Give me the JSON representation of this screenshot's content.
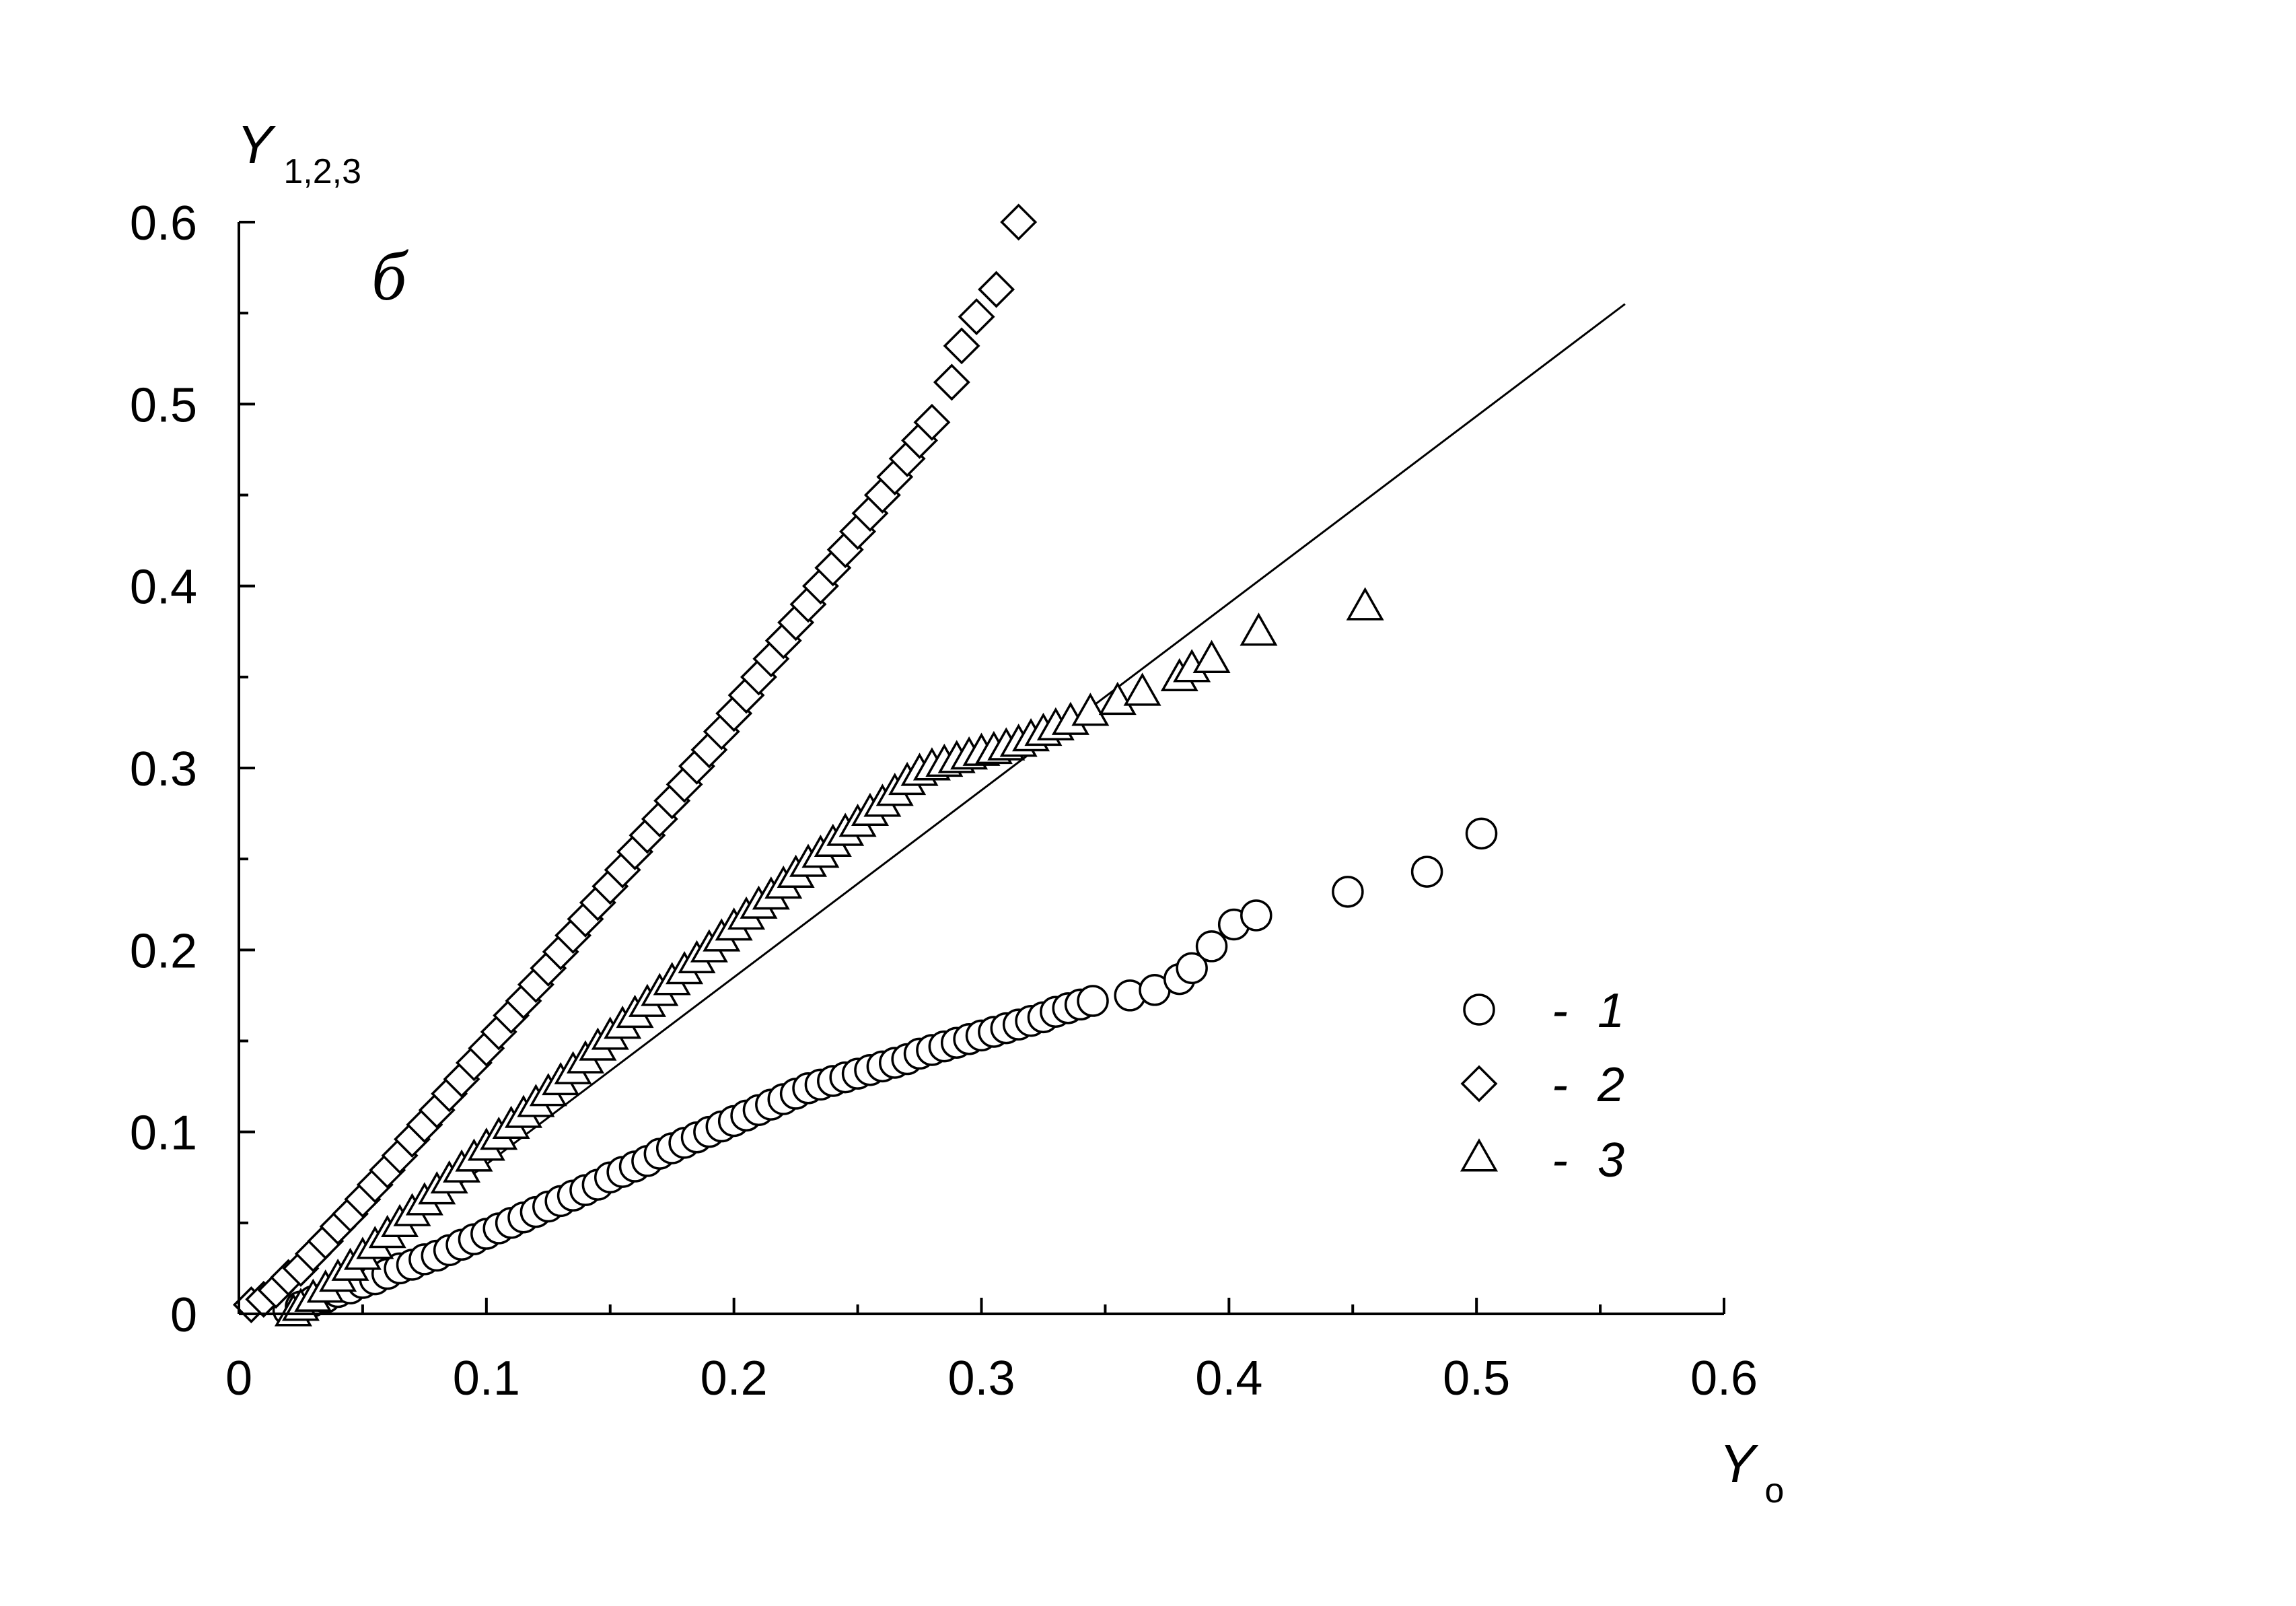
{
  "chart_data": {
    "type": "scatter",
    "title": "",
    "panel_label": "б",
    "xlabel": {
      "main": "Y",
      "sub": "o"
    },
    "ylabel": {
      "main": "Y",
      "sub": "1,2,3"
    },
    "xlim": [
      0,
      0.6
    ],
    "ylim": [
      0,
      0.6
    ],
    "xticks": [
      "0",
      "0.1",
      "0.2",
      "0.3",
      "0.4",
      "0.5",
      "0.6"
    ],
    "yticks": [
      "0",
      "0.1",
      "0.2",
      "0.3",
      "0.4",
      "0.5",
      "0.6"
    ],
    "grid": false,
    "legend_position": "right-middle",
    "legend": [
      {
        "marker": "circle",
        "dash": "-",
        "label": "1"
      },
      {
        "marker": "diamond",
        "dash": "-",
        "label": "2"
      },
      {
        "marker": "triangle",
        "dash": "-",
        "label": "3"
      }
    ],
    "reference_line": {
      "x": [
        0.02,
        0.56
      ],
      "y": [
        0.0,
        0.555
      ]
    },
    "series": [
      {
        "label": "1",
        "marker": "circle",
        "points": [
          [
            0.02,
            0.002
          ],
          [
            0.025,
            0.004
          ],
          [
            0.03,
            0.007
          ],
          [
            0.035,
            0.009
          ],
          [
            0.04,
            0.012
          ],
          [
            0.045,
            0.014
          ],
          [
            0.05,
            0.017
          ],
          [
            0.055,
            0.019
          ],
          [
            0.06,
            0.022
          ],
          [
            0.065,
            0.025
          ],
          [
            0.07,
            0.027
          ],
          [
            0.075,
            0.03
          ],
          [
            0.08,
            0.032
          ],
          [
            0.085,
            0.035
          ],
          [
            0.09,
            0.038
          ],
          [
            0.095,
            0.041
          ],
          [
            0.1,
            0.044
          ],
          [
            0.105,
            0.047
          ],
          [
            0.11,
            0.05
          ],
          [
            0.115,
            0.053
          ],
          [
            0.12,
            0.056
          ],
          [
            0.125,
            0.059
          ],
          [
            0.13,
            0.062
          ],
          [
            0.135,
            0.065
          ],
          [
            0.14,
            0.068
          ],
          [
            0.145,
            0.071
          ],
          [
            0.15,
            0.075
          ],
          [
            0.155,
            0.078
          ],
          [
            0.16,
            0.081
          ],
          [
            0.165,
            0.084
          ],
          [
            0.17,
            0.088
          ],
          [
            0.175,
            0.091
          ],
          [
            0.18,
            0.094
          ],
          [
            0.185,
            0.097
          ],
          [
            0.19,
            0.1
          ],
          [
            0.195,
            0.103
          ],
          [
            0.2,
            0.106
          ],
          [
            0.205,
            0.109
          ],
          [
            0.21,
            0.112
          ],
          [
            0.215,
            0.115
          ],
          [
            0.22,
            0.118
          ],
          [
            0.225,
            0.121
          ],
          [
            0.23,
            0.124
          ],
          [
            0.235,
            0.126
          ],
          [
            0.24,
            0.128
          ],
          [
            0.245,
            0.13
          ],
          [
            0.25,
            0.132
          ],
          [
            0.255,
            0.134
          ],
          [
            0.26,
            0.136
          ],
          [
            0.265,
            0.138
          ],
          [
            0.27,
            0.14
          ],
          [
            0.275,
            0.143
          ],
          [
            0.28,
            0.145
          ],
          [
            0.285,
            0.147
          ],
          [
            0.29,
            0.149
          ],
          [
            0.295,
            0.151
          ],
          [
            0.3,
            0.153
          ],
          [
            0.305,
            0.155
          ],
          [
            0.31,
            0.157
          ],
          [
            0.315,
            0.159
          ],
          [
            0.32,
            0.161
          ],
          [
            0.325,
            0.163
          ],
          [
            0.33,
            0.166
          ],
          [
            0.335,
            0.168
          ],
          [
            0.34,
            0.17
          ],
          [
            0.345,
            0.172
          ],
          [
            0.36,
            0.175
          ],
          [
            0.37,
            0.178
          ],
          [
            0.38,
            0.184
          ],
          [
            0.385,
            0.19
          ],
          [
            0.393,
            0.202
          ],
          [
            0.402,
            0.214
          ],
          [
            0.411,
            0.219
          ],
          [
            0.448,
            0.232
          ],
          [
            0.48,
            0.243
          ],
          [
            0.502,
            0.264
          ]
        ]
      },
      {
        "label": "2",
        "marker": "diamond",
        "points": [
          [
            0.005,
            0.005
          ],
          [
            0.01,
            0.008
          ],
          [
            0.015,
            0.013
          ],
          [
            0.02,
            0.02
          ],
          [
            0.025,
            0.025
          ],
          [
            0.03,
            0.033
          ],
          [
            0.035,
            0.04
          ],
          [
            0.04,
            0.048
          ],
          [
            0.045,
            0.055
          ],
          [
            0.05,
            0.063
          ],
          [
            0.055,
            0.071
          ],
          [
            0.06,
            0.079
          ],
          [
            0.065,
            0.087
          ],
          [
            0.07,
            0.096
          ],
          [
            0.075,
            0.104
          ],
          [
            0.08,
            0.112
          ],
          [
            0.085,
            0.121
          ],
          [
            0.09,
            0.129
          ],
          [
            0.095,
            0.138
          ],
          [
            0.1,
            0.146
          ],
          [
            0.105,
            0.155
          ],
          [
            0.11,
            0.164
          ],
          [
            0.115,
            0.172
          ],
          [
            0.12,
            0.181
          ],
          [
            0.125,
            0.19
          ],
          [
            0.13,
            0.199
          ],
          [
            0.135,
            0.208
          ],
          [
            0.14,
            0.217
          ],
          [
            0.145,
            0.226
          ],
          [
            0.15,
            0.235
          ],
          [
            0.155,
            0.244
          ],
          [
            0.16,
            0.254
          ],
          [
            0.165,
            0.263
          ],
          [
            0.17,
            0.272
          ],
          [
            0.175,
            0.282
          ],
          [
            0.18,
            0.291
          ],
          [
            0.185,
            0.301
          ],
          [
            0.19,
            0.31
          ],
          [
            0.195,
            0.32
          ],
          [
            0.2,
            0.33
          ],
          [
            0.205,
            0.34
          ],
          [
            0.21,
            0.35
          ],
          [
            0.215,
            0.36
          ],
          [
            0.22,
            0.37
          ],
          [
            0.225,
            0.38
          ],
          [
            0.23,
            0.39
          ],
          [
            0.235,
            0.4
          ],
          [
            0.24,
            0.41
          ],
          [
            0.245,
            0.42
          ],
          [
            0.25,
            0.43
          ],
          [
            0.255,
            0.44
          ],
          [
            0.26,
            0.45
          ],
          [
            0.265,
            0.46
          ],
          [
            0.27,
            0.47
          ],
          [
            0.275,
            0.48
          ],
          [
            0.28,
            0.49
          ],
          [
            0.288,
            0.512
          ],
          [
            0.292,
            0.532
          ],
          [
            0.298,
            0.548
          ],
          [
            0.306,
            0.563
          ],
          [
            0.315,
            0.6
          ]
        ]
      },
      {
        "label": "3",
        "marker": "triangle",
        "points": [
          [
            0.022,
            0.0
          ],
          [
            0.025,
            0.003
          ],
          [
            0.03,
            0.008
          ],
          [
            0.035,
            0.013
          ],
          [
            0.04,
            0.019
          ],
          [
            0.045,
            0.025
          ],
          [
            0.05,
            0.031
          ],
          [
            0.055,
            0.037
          ],
          [
            0.06,
            0.043
          ],
          [
            0.065,
            0.049
          ],
          [
            0.07,
            0.055
          ],
          [
            0.075,
            0.061
          ],
          [
            0.08,
            0.067
          ],
          [
            0.085,
            0.073
          ],
          [
            0.09,
            0.079
          ],
          [
            0.095,
            0.085
          ],
          [
            0.1,
            0.091
          ],
          [
            0.105,
            0.097
          ],
          [
            0.11,
            0.103
          ],
          [
            0.115,
            0.109
          ],
          [
            0.12,
            0.115
          ],
          [
            0.125,
            0.121
          ],
          [
            0.13,
            0.127
          ],
          [
            0.135,
            0.133
          ],
          [
            0.14,
            0.139
          ],
          [
            0.145,
            0.146
          ],
          [
            0.15,
            0.152
          ],
          [
            0.155,
            0.158
          ],
          [
            0.16,
            0.164
          ],
          [
            0.165,
            0.17
          ],
          [
            0.17,
            0.176
          ],
          [
            0.175,
            0.182
          ],
          [
            0.18,
            0.188
          ],
          [
            0.185,
            0.194
          ],
          [
            0.19,
            0.2
          ],
          [
            0.195,
            0.206
          ],
          [
            0.2,
            0.212
          ],
          [
            0.205,
            0.218
          ],
          [
            0.21,
            0.224
          ],
          [
            0.215,
            0.229
          ],
          [
            0.22,
            0.235
          ],
          [
            0.225,
            0.241
          ],
          [
            0.23,
            0.247
          ],
          [
            0.235,
            0.252
          ],
          [
            0.24,
            0.258
          ],
          [
            0.245,
            0.264
          ],
          [
            0.25,
            0.269
          ],
          [
            0.255,
            0.275
          ],
          [
            0.26,
            0.28
          ],
          [
            0.265,
            0.286
          ],
          [
            0.27,
            0.292
          ],
          [
            0.275,
            0.297
          ],
          [
            0.28,
            0.3
          ],
          [
            0.285,
            0.302
          ],
          [
            0.29,
            0.304
          ],
          [
            0.295,
            0.306
          ],
          [
            0.3,
            0.308
          ],
          [
            0.305,
            0.309
          ],
          [
            0.31,
            0.311
          ],
          [
            0.315,
            0.313
          ],
          [
            0.32,
            0.316
          ],
          [
            0.325,
            0.319
          ],
          [
            0.33,
            0.322
          ],
          [
            0.336,
            0.325
          ],
          [
            0.344,
            0.33
          ],
          [
            0.355,
            0.336
          ],
          [
            0.365,
            0.341
          ],
          [
            0.38,
            0.349
          ],
          [
            0.385,
            0.354
          ],
          [
            0.393,
            0.359
          ],
          [
            0.412,
            0.374
          ],
          [
            0.455,
            0.388
          ]
        ]
      }
    ]
  }
}
